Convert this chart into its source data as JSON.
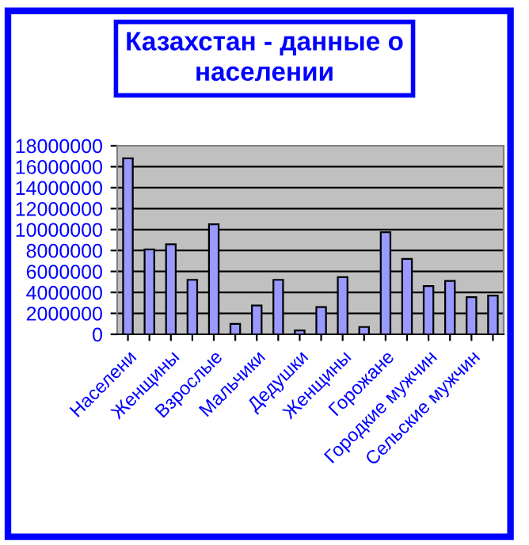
{
  "chart_data": {
    "type": "bar",
    "title": "Казахстан - данные о\nнаселении",
    "categories": [
      "Населени",
      null,
      "Женщины",
      null,
      "Взрослые",
      null,
      "Мальчики",
      null,
      "Дедушки",
      null,
      "Женщины",
      null,
      "Горожане",
      null,
      "Городкие мужчин",
      null,
      "Сельские мужчин",
      null
    ],
    "values": [
      16800000,
      8100000,
      8600000,
      5200000,
      10500000,
      1000000,
      2750000,
      5200000,
      370000,
      2600000,
      5450000,
      700000,
      9750000,
      7200000,
      4600000,
      5100000,
      3550000,
      3700000
    ],
    "color": "#9999ff",
    "ylim": [
      0,
      18000000
    ],
    "yticks": [
      0,
      2000000,
      4000000,
      6000000,
      8000000,
      10000000,
      12000000,
      14000000,
      16000000,
      18000000
    ],
    "grid": "y",
    "legend": false
  }
}
